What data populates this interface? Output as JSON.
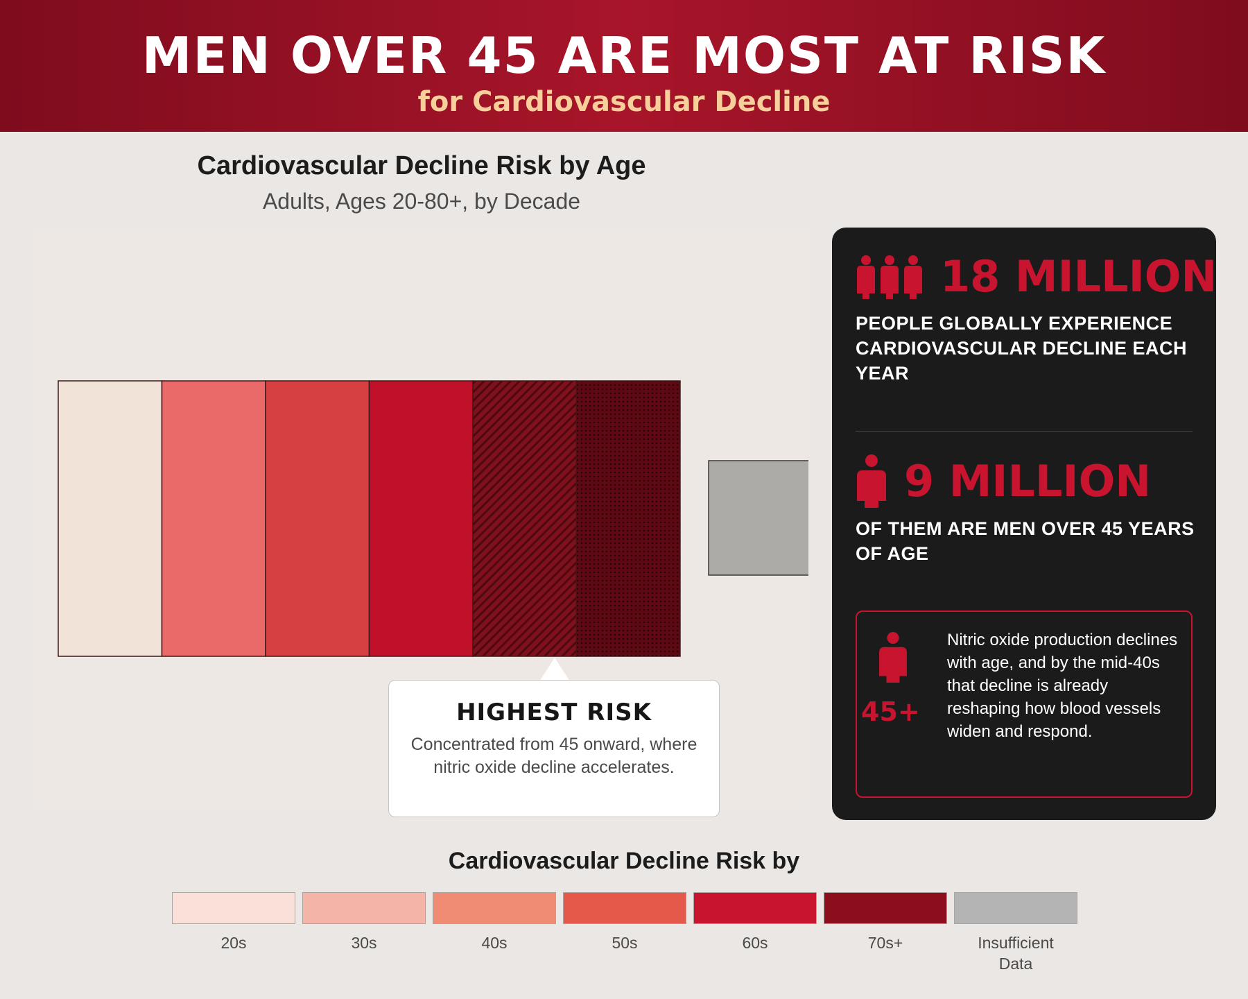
{
  "header": {
    "title": "MEN OVER 45 ARE MOST AT RISK",
    "subtitle": "for Cardiovascular Decline",
    "background_color": "#9a1226",
    "subtitle_color": "#f7cf9a"
  },
  "chart_data": {
    "type": "heatmap",
    "title": "Cardiovascular Decline Risk by Age",
    "subtitle": "Adults, Ages 20-80+, by Decade",
    "cells": [
      {
        "category": "20s",
        "risk_level": 1,
        "color": "#f2e3d8"
      },
      {
        "category": "30s",
        "risk_level": 2,
        "color": "#ea6a6a"
      },
      {
        "category": "40s",
        "risk_level": 3,
        "color": "#d64043"
      },
      {
        "category": "50s",
        "risk_level": 4,
        "color": "#c0112a"
      },
      {
        "category": "60s",
        "risk_level": 5,
        "color": "#7e111c",
        "pattern": "diagonal-hatch"
      },
      {
        "category": "70s+",
        "risk_level": 6,
        "color": "#5e0914",
        "pattern": "dots"
      }
    ],
    "insufficient_data": {
      "category": "Insufficient Data",
      "color": "#adaba8"
    },
    "callout": {
      "title": "HIGHEST RISK",
      "text": "Concentrated from 45 onward, where nitric oxide decline accelerates."
    },
    "legend": {
      "title": "Cardiovascular Decline Risk by",
      "position": "bottom",
      "items": [
        {
          "label": "20s",
          "color": "#fae0d9"
        },
        {
          "label": "30s",
          "color": "#f4b4a7"
        },
        {
          "label": "40s",
          "color": "#f08c74"
        },
        {
          "label": "50s",
          "color": "#e4594a"
        },
        {
          "label": "60s",
          "color": "#c8142e"
        },
        {
          "label": "70s+",
          "color": "#8c0d1c"
        },
        {
          "label": "Insufficient Data",
          "color": "#b4b4b4"
        }
      ]
    }
  },
  "stats_panel": {
    "stat1": {
      "number": "18 MILLION",
      "label": "PEOPLE GLOBALLY EXPERIENCE CARDIOVASCULAR DECLINE EACH YEAR",
      "icon": "three-people-icon"
    },
    "stat2": {
      "number": "9 MILLION",
      "label": "OF THEM ARE MEN OVER 45 YEARS OF AGE",
      "icon": "person-icon"
    },
    "info": {
      "age": "45+",
      "text": "Nitric oxide production declines with age, and by the mid-40s that decline is already reshaping how blood vessels widen and respond.",
      "icon": "person-icon"
    },
    "accent_color": "#c8142e",
    "background_color": "#1c1b1c"
  }
}
